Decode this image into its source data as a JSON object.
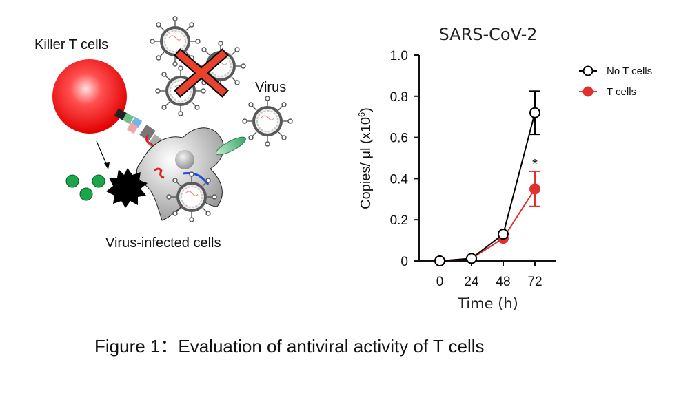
{
  "figure": {
    "caption": "Figure 1：Evaluation of antiviral activity of T cells"
  },
  "diagram": {
    "killer_label": "Killer T cells",
    "virus_label": "Virus",
    "infected_label": "Virus-infected cells"
  },
  "colors": {
    "no_t_cells": "#000000",
    "t_cells": "#e0312d",
    "killer_cell": "#ff2a2a",
    "granule": "#1aa64a",
    "cross": "#e8412c"
  },
  "chart_data": {
    "type": "line",
    "title": "SARS-CoV-2",
    "xlabel": "Time (h)",
    "ylabel_main": "Copies/ μl (x10",
    "ylabel_sup": "6",
    "ylabel_end": ")",
    "x": [
      0,
      24,
      48,
      72
    ],
    "xticks": [
      "0",
      "24",
      "48",
      "72"
    ],
    "yticks": [
      "0",
      "0.2",
      "0.4",
      "0.6",
      "0.8",
      "1.0"
    ],
    "ylim": [
      0,
      1.0
    ],
    "legend_position": "top-right",
    "annotation": "*",
    "series": [
      {
        "name": "No T cells",
        "marker": "open-circle",
        "color": "#000000",
        "values": [
          0.0,
          0.012,
          0.13,
          0.72
        ],
        "err": [
          0,
          0.005,
          0.01,
          0.105
        ]
      },
      {
        "name": "T cells",
        "marker": "filled-circle",
        "color": "#e0312d",
        "values": [
          0.0,
          0.012,
          0.11,
          0.35
        ],
        "err": [
          0,
          0.005,
          0.02,
          0.085
        ]
      }
    ]
  }
}
